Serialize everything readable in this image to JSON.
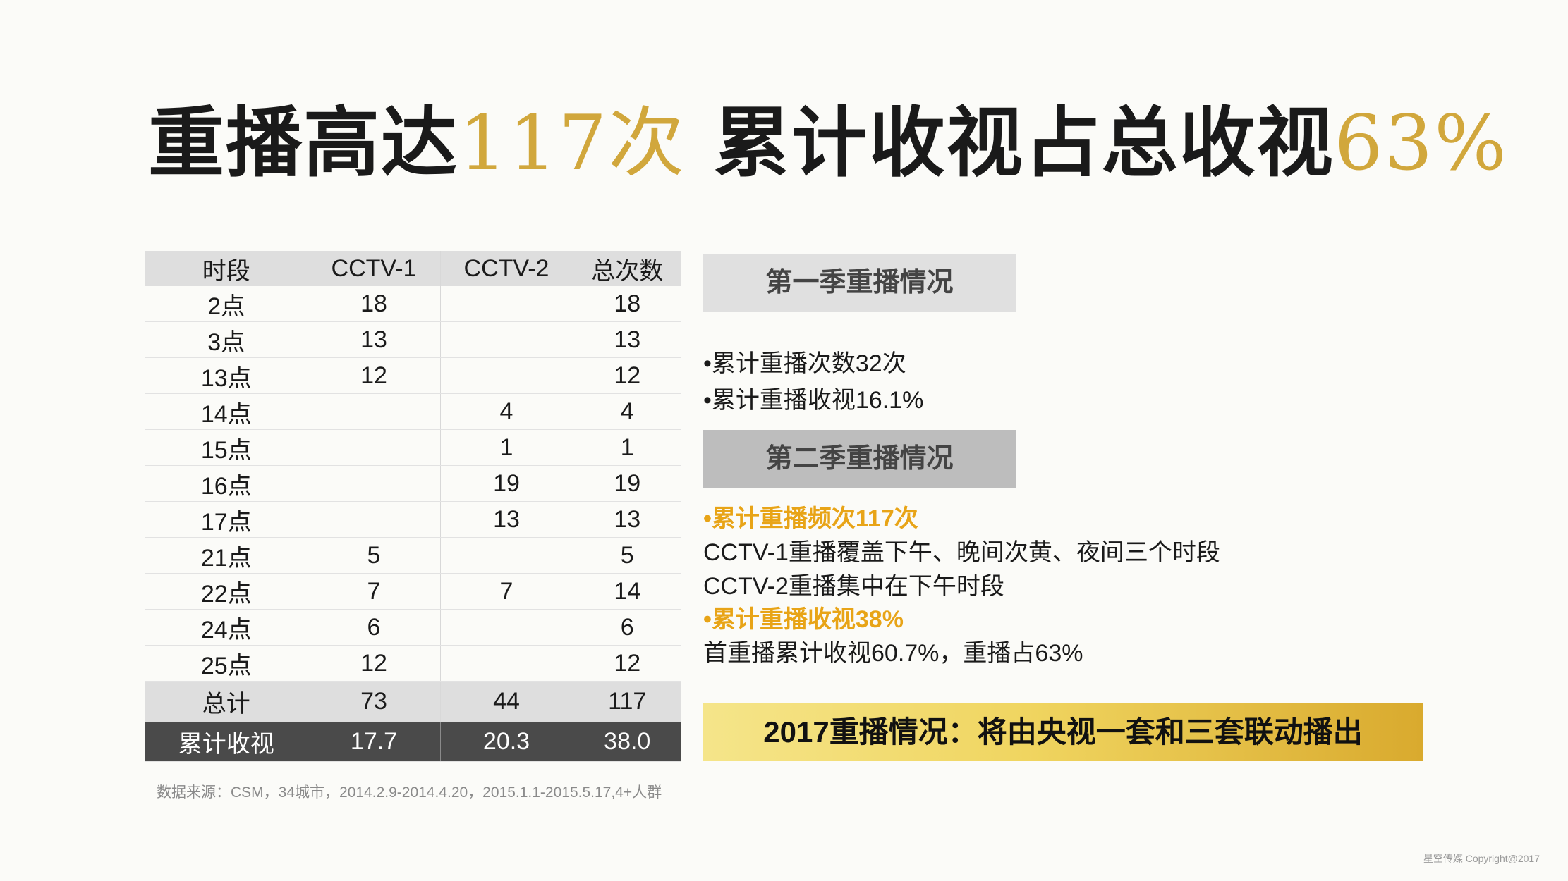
{
  "title": {
    "part1": "重播高达",
    "part2": "117次",
    "part3": " 累计收视占总收视",
    "part4": "63%"
  },
  "table": {
    "headers": [
      "时段",
      "CCTV-1",
      "CCTV-2",
      "总次数"
    ],
    "rows": [
      [
        "2点",
        "18",
        "",
        "18"
      ],
      [
        "3点",
        "13",
        "",
        "13"
      ],
      [
        "13点",
        "12",
        "",
        "12"
      ],
      [
        "14点",
        "",
        "4",
        "4"
      ],
      [
        "15点",
        "",
        "1",
        "1"
      ],
      [
        "16点",
        "",
        "19",
        "19"
      ],
      [
        "17点",
        "",
        "13",
        "13"
      ],
      [
        "21点",
        "5",
        "",
        "5"
      ],
      [
        "22点",
        "7",
        "7",
        "14"
      ],
      [
        "24点",
        "6",
        "",
        "6"
      ],
      [
        "25点",
        "12",
        "",
        "12"
      ]
    ],
    "total": [
      "总计",
      "73",
      "44",
      "117"
    ],
    "rating": [
      "累计收视",
      "17.7",
      "20.3",
      "38.0"
    ]
  },
  "source": "数据来源：CSM，34城市，2014.2.9-2014.4.20，2015.1.1-2015.5.17,4+人群",
  "season1": {
    "heading": "第一季重播情况",
    "lines": [
      "•累计重播次数32次",
      "•累计重播收视16.1%"
    ]
  },
  "season2": {
    "heading": "第二季重播情况",
    "line1": "•累计重播频次117次",
    "line2": "CCTV-1重播覆盖下午、晚间次黄、夜间三个时段",
    "line3": "CCTV-2重播集中在下午时段",
    "line4": "•累计重播收视38%",
    "line5": "首重播累计收视60.7%，重播占63%"
  },
  "banner": "2017重播情况：将由央视一套和三套联动播出",
  "copyright": "星空传媒  Copyright@2017",
  "colors": {
    "gold": "#d1a73c",
    "highlight": "#e8a417",
    "dark_row": "#4a4a4a"
  }
}
